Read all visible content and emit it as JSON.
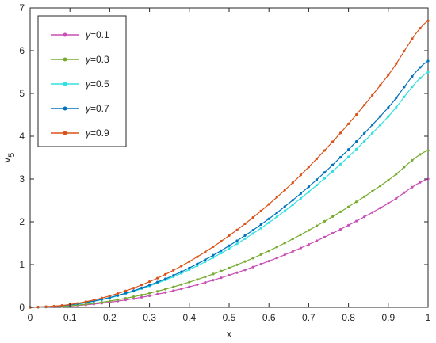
{
  "chart_data": {
    "type": "line",
    "xlabel": "x",
    "ylabel_main": "v",
    "ylabel_sub": "5",
    "xlim": [
      0,
      1
    ],
    "ylim": [
      0,
      7
    ],
    "xticks": [
      "0",
      "0.1",
      "0.2",
      "0.3",
      "0.4",
      "0.5",
      "0.6",
      "0.7",
      "0.8",
      "0.9",
      "1"
    ],
    "yticks": [
      "0",
      "1",
      "2",
      "3",
      "4",
      "5",
      "6",
      "7"
    ],
    "legend_position": "top-left",
    "grid": false,
    "x": [
      0,
      0.1,
      0.2,
      0.3,
      0.4,
      0.5,
      0.6,
      0.7,
      0.8,
      0.9,
      1.0
    ],
    "series": [
      {
        "name_symbol": "γ",
        "name_value": "=0.1",
        "color": "#c84fb4",
        "values": [
          0,
          0.03,
          0.12,
          0.27,
          0.48,
          0.75,
          1.08,
          1.47,
          1.92,
          2.43,
          3.0
        ]
      },
      {
        "name_symbol": "γ",
        "name_value": "=0.3",
        "color": "#77ac30",
        "values": [
          0,
          0.037,
          0.147,
          0.33,
          0.59,
          0.92,
          1.32,
          1.8,
          2.35,
          2.97,
          3.67
        ]
      },
      {
        "name_symbol": "γ",
        "name_value": "=0.5",
        "color": "#30e0e0",
        "values": [
          0,
          0.055,
          0.22,
          0.5,
          0.88,
          1.375,
          1.98,
          2.7,
          3.52,
          4.46,
          5.5
        ]
      },
      {
        "name_symbol": "γ",
        "name_value": "=0.7",
        "color": "#0072bd",
        "values": [
          0,
          0.058,
          0.23,
          0.52,
          0.92,
          1.44,
          2.07,
          2.82,
          3.69,
          4.67,
          5.76
        ]
      },
      {
        "name_symbol": "γ",
        "name_value": "=0.9",
        "color": "#d95319",
        "values": [
          0,
          0.067,
          0.268,
          0.6,
          1.07,
          1.675,
          2.41,
          3.28,
          4.29,
          5.43,
          6.7
        ]
      }
    ]
  }
}
